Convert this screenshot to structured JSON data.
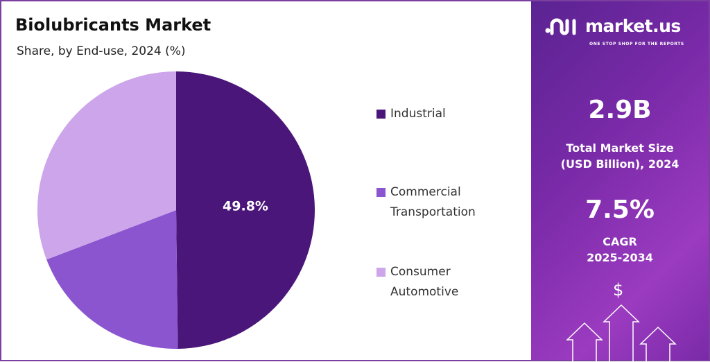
{
  "header": {
    "title": "Biolubricants Market",
    "subtitle": "Share, by End-use, 2024 (%)"
  },
  "chart_data": {
    "type": "pie",
    "title": "Biolubricants Market",
    "subtitle": "Share, by End-use, 2024 (%)",
    "categories": [
      "Industrial",
      "Commercial Transportation",
      "Consumer Automotive"
    ],
    "values": [
      49.8,
      19.4,
      30.8
    ],
    "colors": [
      "#4a1679",
      "#8a55cf",
      "#cda5ea"
    ],
    "data_labels": [
      "49.8%",
      "",
      ""
    ],
    "legend_position": "right",
    "legend": [
      {
        "line1": "Industrial",
        "line2": ""
      },
      {
        "line1": "Commercial",
        "line2": "Transportation"
      },
      {
        "line1": "Consumer",
        "line2": "Automotive"
      }
    ]
  },
  "sidebar": {
    "brand": "market.us",
    "tagline": "ONE STOP SHOP FOR THE REPORTS",
    "market_size": "2.9B",
    "market_size_label_1": "Total Market Size",
    "market_size_label_2": "(USD Billion), 2024",
    "cagr": "7.5%",
    "cagr_label_1": "CAGR",
    "cagr_label_2": "2025-2034",
    "dollar_icon": "$"
  }
}
